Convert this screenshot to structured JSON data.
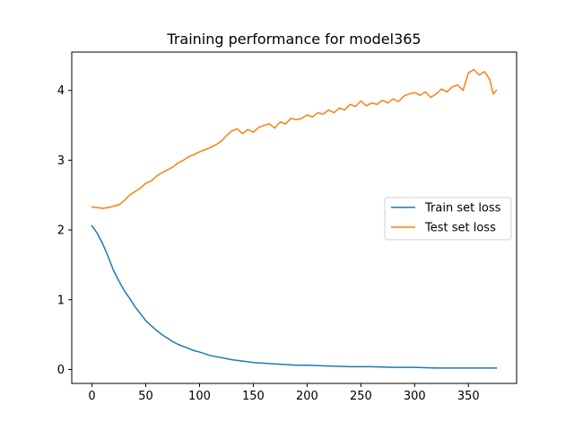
{
  "chart_data": {
    "type": "line",
    "title": "Training performance for model365",
    "xlabel": "",
    "ylabel": "",
    "xlim": [
      -18.8,
      394.8
    ],
    "ylim": [
      -0.2,
      4.55
    ],
    "xticks": [
      0,
      50,
      100,
      150,
      200,
      250,
      300,
      350
    ],
    "yticks": [
      0,
      1,
      2,
      3,
      4
    ],
    "grid": false,
    "legend_position": "center-right",
    "series": [
      {
        "name": "Train set loss",
        "color": "#1f77b4",
        "x": [
          0,
          5,
          10,
          15,
          20,
          25,
          30,
          35,
          40,
          45,
          50,
          55,
          60,
          65,
          70,
          75,
          80,
          85,
          90,
          95,
          100,
          110,
          120,
          130,
          140,
          150,
          160,
          170,
          180,
          190,
          200,
          220,
          240,
          260,
          280,
          300,
          320,
          340,
          360,
          370,
          376
        ],
        "y": [
          2.06,
          1.95,
          1.8,
          1.62,
          1.42,
          1.27,
          1.13,
          1.02,
          0.9,
          0.8,
          0.7,
          0.63,
          0.56,
          0.5,
          0.45,
          0.4,
          0.36,
          0.33,
          0.3,
          0.27,
          0.25,
          0.2,
          0.17,
          0.14,
          0.12,
          0.1,
          0.09,
          0.08,
          0.07,
          0.06,
          0.06,
          0.05,
          0.04,
          0.04,
          0.03,
          0.03,
          0.02,
          0.02,
          0.02,
          0.02,
          0.02
        ]
      },
      {
        "name": "Test set loss",
        "color": "#ff7f0e",
        "x": [
          0,
          5,
          10,
          15,
          20,
          25,
          30,
          35,
          40,
          45,
          50,
          55,
          60,
          65,
          70,
          75,
          80,
          85,
          90,
          95,
          100,
          105,
          110,
          115,
          120,
          125,
          130,
          135,
          140,
          145,
          150,
          155,
          160,
          165,
          170,
          175,
          180,
          185,
          190,
          195,
          200,
          205,
          210,
          215,
          220,
          225,
          230,
          235,
          240,
          245,
          250,
          255,
          260,
          265,
          270,
          275,
          280,
          285,
          290,
          295,
          300,
          305,
          310,
          315,
          320,
          325,
          330,
          335,
          340,
          345,
          350,
          355,
          360,
          365,
          370,
          373,
          376
        ],
        "y": [
          2.33,
          2.32,
          2.31,
          2.32,
          2.34,
          2.36,
          2.42,
          2.5,
          2.55,
          2.6,
          2.67,
          2.7,
          2.77,
          2.82,
          2.86,
          2.9,
          2.96,
          3.0,
          3.05,
          3.08,
          3.12,
          3.15,
          3.18,
          3.22,
          3.27,
          3.35,
          3.42,
          3.45,
          3.38,
          3.44,
          3.4,
          3.47,
          3.5,
          3.52,
          3.46,
          3.55,
          3.52,
          3.6,
          3.58,
          3.6,
          3.65,
          3.62,
          3.68,
          3.66,
          3.72,
          3.68,
          3.75,
          3.72,
          3.8,
          3.77,
          3.85,
          3.78,
          3.82,
          3.8,
          3.86,
          3.82,
          3.88,
          3.84,
          3.92,
          3.95,
          3.97,
          3.93,
          3.98,
          3.9,
          3.95,
          4.02,
          3.98,
          4.05,
          4.08,
          4.0,
          4.25,
          4.3,
          4.22,
          4.27,
          4.15,
          3.95,
          4.0
        ]
      }
    ]
  }
}
